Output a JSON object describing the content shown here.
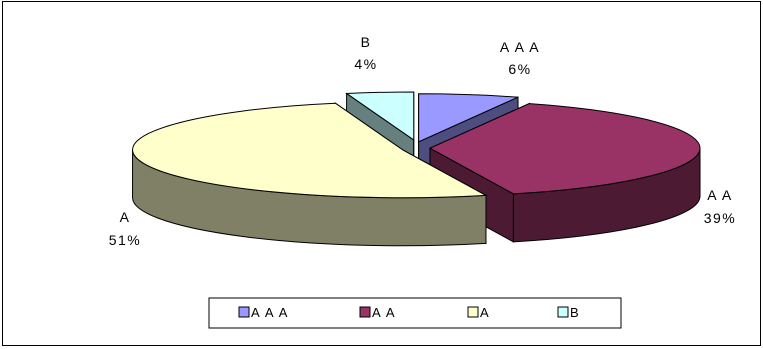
{
  "chart_data": {
    "type": "pie",
    "title": "",
    "categories": [
      "AAA",
      "AA",
      "A",
      "B"
    ],
    "values": [
      6,
      39,
      51,
      4
    ],
    "labels": [
      {
        "category": "AAA",
        "name": "A A A",
        "percent": "6%"
      },
      {
        "category": "AA",
        "name": "A A",
        "percent": "39%"
      },
      {
        "category": "A",
        "name": "A",
        "percent": "51%"
      },
      {
        "category": "B",
        "name": "B",
        "percent": "4%"
      }
    ],
    "legend": {
      "position": "bottom",
      "entries": [
        "A A A",
        "A A",
        "A",
        "B"
      ]
    },
    "exploded": true,
    "three_d": true
  },
  "colors": {
    "AAA": {
      "top": "#9999FF",
      "side": "#4D4D80"
    },
    "AA": {
      "top": "#993366",
      "side": "#4D1A33"
    },
    "A": {
      "top": "#FFFFCC",
      "side": "#808066"
    },
    "B": {
      "top": "#CCFFFF",
      "side": "#668080"
    },
    "edge": "#000000",
    "frame": "#000000",
    "background": "#ffffff"
  }
}
